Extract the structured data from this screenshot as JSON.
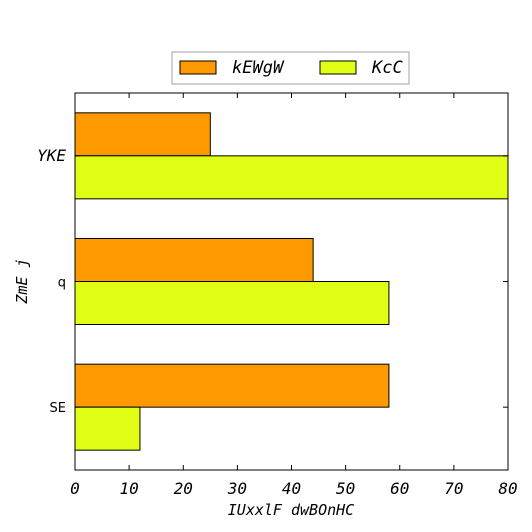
{
  "chart_data": {
    "type": "bar",
    "orientation": "horizontal",
    "categories": [
      "YKE",
      "q",
      "SE"
    ],
    "series": [
      {
        "name": "kEWgW",
        "color": "#ff9900",
        "values": [
          25,
          44,
          58
        ]
      },
      {
        "name": "KcC",
        "color": "#e0ff14",
        "values": [
          80,
          58,
          12
        ]
      }
    ],
    "xlabel": "IUxxlF dwBOnHC",
    "ylabel": "ZmE j",
    "xlim": [
      0,
      80
    ],
    "xticks": [
      "0",
      "10",
      "20",
      "30",
      "40",
      "50",
      "60",
      "70",
      "80"
    ],
    "grid": false,
    "legend_position": "top-center"
  }
}
